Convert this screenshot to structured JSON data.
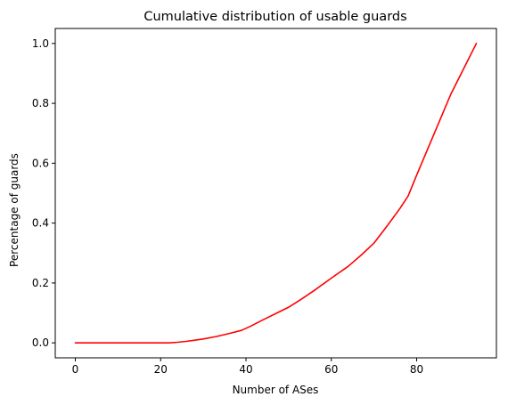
{
  "chart_data": {
    "type": "line",
    "title": "Cumulative distribution of usable guards",
    "xlabel": "Number of ASes",
    "ylabel": "Percentage of guards",
    "xlim": [
      -4.7,
      98.7
    ],
    "ylim": [
      -0.05,
      1.05
    ],
    "xticks": [
      0,
      20,
      40,
      60,
      80
    ],
    "xtick_labels": [
      "0",
      "20",
      "40",
      "60",
      "80"
    ],
    "yticks": [
      0.0,
      0.2,
      0.4,
      0.6,
      0.8,
      1.0
    ],
    "ytick_labels": [
      "0.0",
      "0.2",
      "0.4",
      "0.6",
      "0.8",
      "1.0"
    ],
    "grid": false,
    "legend": null,
    "series": [
      {
        "color": "#ff0000",
        "x": [
          0,
          5,
          10,
          15,
          20,
          22,
          24,
          26,
          28,
          30,
          33,
          36,
          39,
          41,
          44,
          47,
          50,
          53,
          56,
          60,
          64,
          67,
          70,
          73,
          76,
          78,
          80,
          84,
          88,
          91,
          94
        ],
        "y": [
          0.0,
          0.0,
          0.0,
          0.0,
          0.0,
          0.0,
          0.002,
          0.005,
          0.009,
          0.013,
          0.021,
          0.031,
          0.042,
          0.055,
          0.077,
          0.098,
          0.119,
          0.146,
          0.175,
          0.216,
          0.256,
          0.293,
          0.333,
          0.389,
          0.447,
          0.49,
          0.56,
          0.695,
          0.83,
          0.915,
          1.0
        ]
      }
    ]
  }
}
